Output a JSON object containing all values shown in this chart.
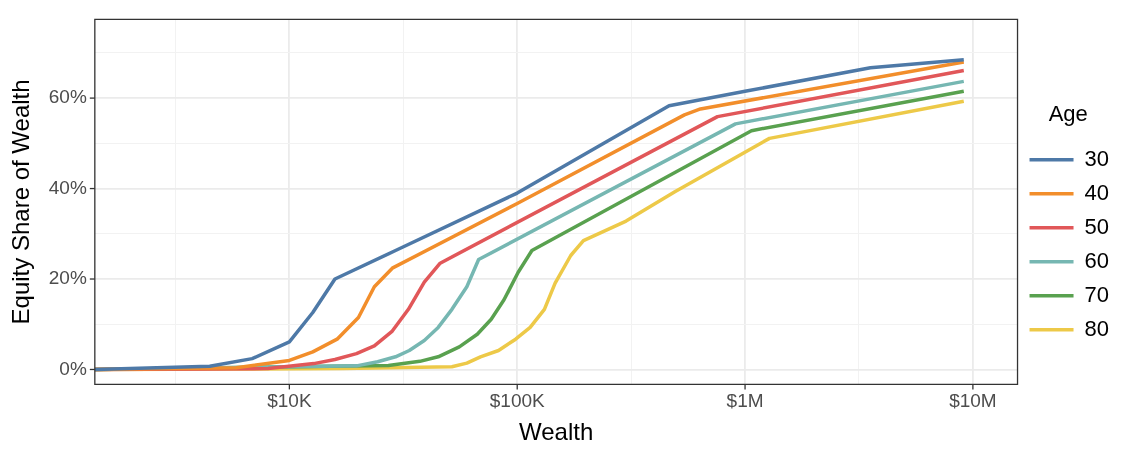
{
  "chart_data": {
    "type": "line",
    "xlabel": "Wealth",
    "ylabel": "Equity Share of Wealth",
    "legend_title": "Age",
    "legend": "right",
    "grid": true,
    "log": "x",
    "marker": "none",
    "line_style": "solid",
    "xlim": [
      1400,
      15700000
    ],
    "ylim": [
      -3.3,
      77.4
    ],
    "xticks": [
      {
        "value": 3162,
        "label": null
      },
      {
        "value": 10000,
        "label": "$10K"
      },
      {
        "value": 31623,
        "label": null
      },
      {
        "value": 100000,
        "label": "$100K"
      },
      {
        "value": 316228,
        "label": null
      },
      {
        "value": 1000000,
        "label": "$1M"
      },
      {
        "value": 3162278,
        "label": null
      },
      {
        "value": 10000000,
        "label": "$10M"
      }
    ],
    "yticks": [
      {
        "value": 0,
        "label": "0%"
      },
      {
        "value": 10,
        "label": null
      },
      {
        "value": 20,
        "label": "20%"
      },
      {
        "value": 30,
        "label": null
      },
      {
        "value": 40,
        "label": "40%"
      },
      {
        "value": 50,
        "label": null
      },
      {
        "value": 60,
        "label": "60%"
      },
      {
        "value": 70,
        "label": null
      }
    ],
    "series": [
      {
        "name": "30",
        "color": "#4e79a7",
        "x": [
          1400,
          4470,
          6870,
          10000,
          12670,
          15850,
          29240,
          100000,
          464000,
          1000000,
          3550000,
          9120000
        ],
        "values": [
          0,
          0.7,
          2.4,
          6.1,
          12.6,
          20,
          26.3,
          39,
          58.3,
          61.5,
          66.7,
          68.5
        ]
      },
      {
        "name": "40",
        "color": "#f28e2b",
        "x": [
          1400,
          5850,
          10000,
          12670,
          16200,
          20100,
          23600,
          28300,
          100000,
          542000,
          637000,
          9120000
        ],
        "values": [
          0,
          0.4,
          2,
          3.9,
          6.7,
          11.5,
          18.3,
          22.4,
          36.7,
          56.3,
          57.6,
          68
        ]
      },
      {
        "name": "50",
        "color": "#e15759",
        "x": [
          1400,
          8070,
          12800,
          15850,
          19700,
          23600,
          28300,
          33300,
          39100,
          45900,
          757000,
          9120000
        ],
        "values": [
          0,
          0.2,
          1.3,
          2.2,
          3.5,
          5.2,
          8.5,
          13.3,
          19.3,
          23.5,
          55.9,
          66.1
        ]
      },
      {
        "name": "60",
        "color": "#76b7b2",
        "x": [
          1400,
          19700,
          24400,
          29240,
          33600,
          39100,
          45000,
          51700,
          60100,
          67700,
          908000,
          9120000
        ],
        "values": [
          0,
          0.8,
          1.7,
          2.8,
          4.2,
          6.4,
          9.3,
          13.3,
          18.3,
          24.3,
          54.3,
          63.7
        ]
      },
      {
        "name": "70",
        "color": "#59a14f",
        "x": [
          1400,
          27200,
          37400,
          45000,
          55700,
          66800,
          76900,
          87500,
          101000,
          116000,
          1067000,
          9120000
        ],
        "values": [
          0,
          0.9,
          1.8,
          2.8,
          5,
          7.8,
          11.1,
          15.4,
          21.5,
          26.3,
          52.8,
          61.5
        ]
      },
      {
        "name": "80",
        "color": "#edc948",
        "x": [
          1400,
          17100,
          51700,
          60100,
          69000,
          82800,
          98400,
          114000,
          131600,
          146700,
          171800,
          195300,
          300500,
          492000,
          1280000,
          9120000
        ],
        "values": [
          0,
          0.2,
          0.6,
          1.4,
          2.8,
          4.2,
          6.7,
          9.3,
          13.3,
          19.1,
          25.2,
          28.5,
          32.8,
          39.3,
          51.1,
          59.3
        ]
      }
    ]
  }
}
